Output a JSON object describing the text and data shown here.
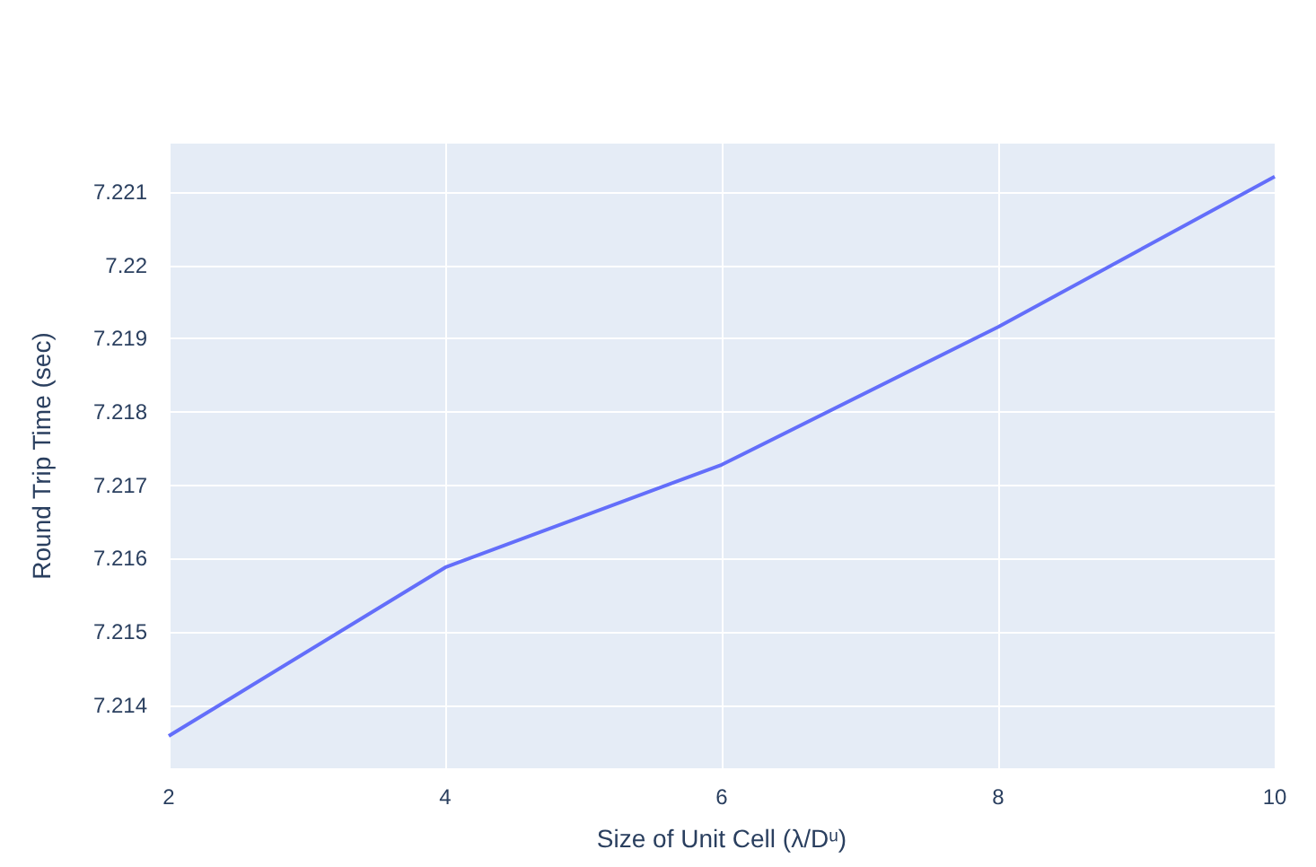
{
  "chart_data": {
    "type": "line",
    "xlabel": "Size of Unit Cell (λ/Dᵘ)",
    "ylabel": "Round Trip Time (sec)",
    "x": [
      2,
      4,
      6,
      8,
      10
    ],
    "series": [
      {
        "color": "#636efa",
        "values": [
          7.21358,
          7.21588,
          7.21728,
          7.21916,
          7.22121
        ]
      }
    ],
    "xlim": [
      2,
      10
    ],
    "xticks": [
      2,
      4,
      6,
      8,
      10
    ],
    "ylim": [
      7.21314,
      7.22166
    ],
    "yticks": [
      7.214,
      7.215,
      7.216,
      7.217,
      7.218,
      7.219,
      7.22,
      7.221
    ],
    "grid": true,
    "marker": "none",
    "line_style": "solid"
  }
}
